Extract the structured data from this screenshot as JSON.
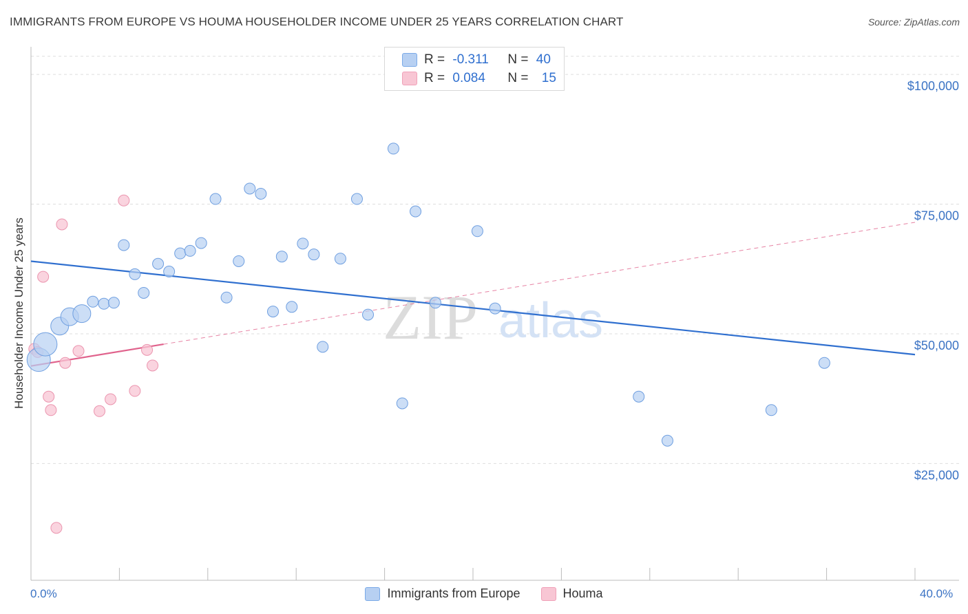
{
  "title": "IMMIGRANTS FROM EUROPE VS HOUMA HOUSEHOLDER INCOME UNDER 25 YEARS CORRELATION CHART",
  "source": "Source: ZipAtlas.com",
  "watermark": {
    "zip": "ZIP",
    "atlas": "atlas"
  },
  "legend": {
    "r_label": "R = ",
    "n_label": "N = ",
    "rows": [
      {
        "r": "-0.311",
        "n": "40",
        "color": "#7aaae8"
      },
      {
        "r": "0.084",
        "n": "15",
        "color": "#f0a0b8"
      }
    ]
  },
  "bottom_legend": [
    {
      "label": "Immigrants from Europe",
      "color": "#7aaae8"
    },
    {
      "label": "Houma",
      "color": "#f0a0b8"
    }
  ],
  "colors": {
    "blue_fill": "#b7d0f2",
    "blue_stroke": "#6f9fe0",
    "blue_line": "#2f6fcf",
    "pink_fill": "#f8c6d4",
    "pink_stroke": "#eb94ae",
    "pink_line": "#e0628c",
    "tick_label": "#3b73c4",
    "grid": "#dddddd"
  },
  "chart_data": {
    "type": "scatter",
    "title": "IMMIGRANTS FROM EUROPE VS HOUMA HOUSEHOLDER INCOME UNDER 25 YEARS CORRELATION CHART",
    "xlabel": "",
    "ylabel": "Householder Income Under 25 years",
    "xlim": [
      0,
      40
    ],
    "ylim": [
      2500,
      104000
    ],
    "x_tick_labels": [
      "0.0%",
      "40.0%"
    ],
    "y_ticks": [
      {
        "value": 25000,
        "label": "$25,000"
      },
      {
        "value": 50000,
        "label": "$50,000"
      },
      {
        "value": 75000,
        "label": "$75,000"
      },
      {
        "value": 100000,
        "label": "$100,000"
      }
    ],
    "series": [
      {
        "name": "Immigrants from Europe",
        "points": [
          {
            "x": 0.35,
            "y": 45000,
            "s": 3
          },
          {
            "x": 0.65,
            "y": 48000,
            "s": 3
          },
          {
            "x": 1.3,
            "y": 51500,
            "s": 2
          },
          {
            "x": 1.75,
            "y": 53300,
            "s": 2
          },
          {
            "x": 2.3,
            "y": 53900,
            "s": 2
          },
          {
            "x": 2.8,
            "y": 56200,
            "s": 1
          },
          {
            "x": 3.3,
            "y": 55800,
            "s": 1
          },
          {
            "x": 3.75,
            "y": 56000,
            "s": 1
          },
          {
            "x": 4.2,
            "y": 67100,
            "s": 1
          },
          {
            "x": 4.7,
            "y": 61500,
            "s": 1
          },
          {
            "x": 5.1,
            "y": 57900,
            "s": 1
          },
          {
            "x": 5.75,
            "y": 63500,
            "s": 1
          },
          {
            "x": 6.25,
            "y": 62000,
            "s": 1
          },
          {
            "x": 6.75,
            "y": 65500,
            "s": 1
          },
          {
            "x": 7.2,
            "y": 66000,
            "s": 1
          },
          {
            "x": 7.7,
            "y": 67500,
            "s": 1
          },
          {
            "x": 8.35,
            "y": 76000,
            "s": 1
          },
          {
            "x": 8.85,
            "y": 57000,
            "s": 1
          },
          {
            "x": 9.4,
            "y": 64000,
            "s": 1
          },
          {
            "x": 9.9,
            "y": 78000,
            "s": 1
          },
          {
            "x": 10.4,
            "y": 77000,
            "s": 1
          },
          {
            "x": 10.95,
            "y": 54300,
            "s": 1
          },
          {
            "x": 11.35,
            "y": 64900,
            "s": 1
          },
          {
            "x": 11.8,
            "y": 55200,
            "s": 1
          },
          {
            "x": 12.3,
            "y": 67400,
            "s": 1
          },
          {
            "x": 12.8,
            "y": 65300,
            "s": 1
          },
          {
            "x": 13.2,
            "y": 47500,
            "s": 1
          },
          {
            "x": 14.0,
            "y": 64500,
            "s": 1
          },
          {
            "x": 14.75,
            "y": 76000,
            "s": 1
          },
          {
            "x": 15.25,
            "y": 53700,
            "s": 1
          },
          {
            "x": 16.4,
            "y": 85700,
            "s": 1
          },
          {
            "x": 16.8,
            "y": 36600,
            "s": 1
          },
          {
            "x": 17.4,
            "y": 73600,
            "s": 1
          },
          {
            "x": 18.3,
            "y": 56000,
            "s": 1
          },
          {
            "x": 20.2,
            "y": 69800,
            "s": 1
          },
          {
            "x": 21.0,
            "y": 54900,
            "s": 1
          },
          {
            "x": 27.5,
            "y": 37900,
            "s": 1
          },
          {
            "x": 28.8,
            "y": 29400,
            "s": 1
          },
          {
            "x": 33.5,
            "y": 35300,
            "s": 1
          },
          {
            "x": 35.9,
            "y": 44400,
            "s": 1
          }
        ],
        "trend": {
          "x": [
            0,
            40
          ],
          "y": [
            64000,
            46000
          ]
        }
      },
      {
        "name": "Houma",
        "points": [
          {
            "x": 0.15,
            "y": 47100
          },
          {
            "x": 0.55,
            "y": 61000
          },
          {
            "x": 0.8,
            "y": 37900
          },
          {
            "x": 0.9,
            "y": 35300
          },
          {
            "x": 1.15,
            "y": 12600
          },
          {
            "x": 1.4,
            "y": 71100
          },
          {
            "x": 1.55,
            "y": 44400
          },
          {
            "x": 2.15,
            "y": 46700
          },
          {
            "x": 3.1,
            "y": 35100
          },
          {
            "x": 3.6,
            "y": 37400
          },
          {
            "x": 4.2,
            "y": 75700
          },
          {
            "x": 4.7,
            "y": 39000
          },
          {
            "x": 5.25,
            "y": 46900
          },
          {
            "x": 5.5,
            "y": 43900
          },
          {
            "x": 0.3,
            "y": 46500
          }
        ],
        "trend": {
          "x": [
            0,
            6
          ],
          "y": [
            43800,
            48000
          ]
        },
        "trend_dashed": {
          "x": [
            6,
            40
          ],
          "y": [
            48000,
            71500
          ]
        }
      }
    ]
  }
}
